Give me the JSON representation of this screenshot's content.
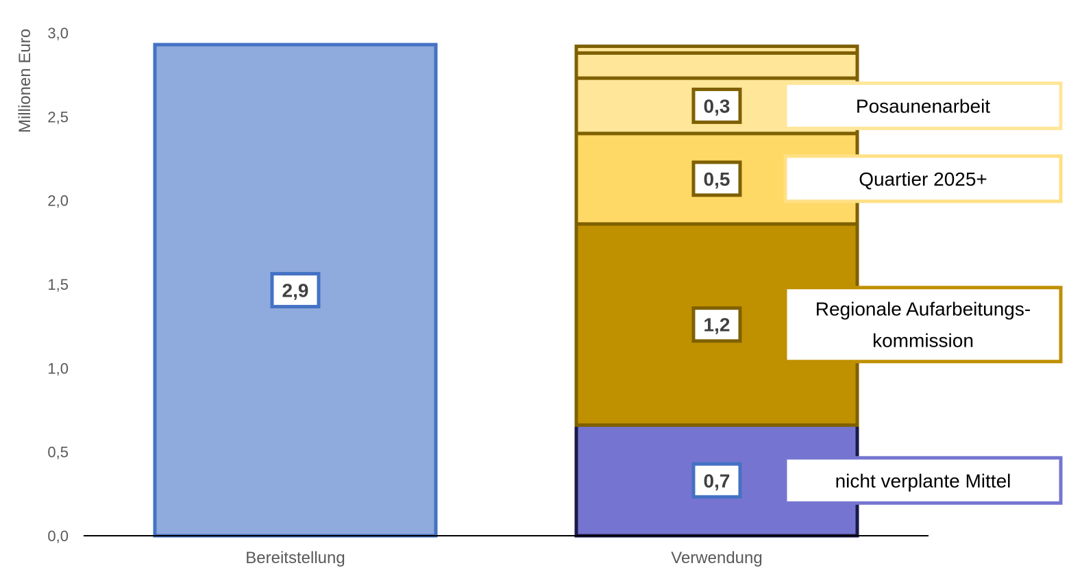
{
  "chart_data": {
    "type": "bar",
    "stacked": true,
    "ylabel": "Millionen Euro",
    "ylim": [
      0,
      3
    ],
    "yticks": [
      "0,0",
      "0,5",
      "1,0",
      "1,5",
      "2,0",
      "2,5",
      "3,0"
    ],
    "categories": [
      "Bereitstellung",
      "Verwendung"
    ],
    "bars": [
      {
        "category": "Bereitstellung",
        "segments": [
          {
            "name": "",
            "value": 2.93,
            "label": "2,9",
            "fill": "#8faadc",
            "stroke": "#4472c4",
            "label_stroke": "#4472c4"
          }
        ]
      },
      {
        "category": "Verwendung",
        "segments": [
          {
            "name": "nicht verplante Mittel",
            "value": 0.66,
            "label": "0,7",
            "fill": "#7575d1",
            "stroke": "#1a1a4a",
            "label_stroke": "#4472c4",
            "legend_stroke": "#7575d1"
          },
          {
            "name": "Regionale Aufarbeitungs-\nkommission",
            "value": 1.2,
            "label": "1,2",
            "fill": "#bf9000",
            "stroke": "#7f6000",
            "label_stroke": "#7f6000",
            "legend_stroke": "#bf9000"
          },
          {
            "name": "Quartier 2025+",
            "value": 0.54,
            "label": "0,5",
            "fill": "#ffd966",
            "stroke": "#7f6000",
            "label_stroke": "#7f6000",
            "legend_stroke": "#ffe085"
          },
          {
            "name": "Posaunenarbeit",
            "value": 0.33,
            "label": "0,3",
            "fill": "#ffe699",
            "stroke": "#7f6000",
            "label_stroke": "#7f6000",
            "legend_stroke": "#ffe699"
          },
          {
            "name": "",
            "value": 0.15,
            "label": "",
            "fill": "#ffe699",
            "stroke": "#7f6000"
          },
          {
            "name": "",
            "value": 0.04,
            "label": "",
            "fill": "#ffe699",
            "stroke": "#7f6000"
          }
        ]
      }
    ]
  }
}
